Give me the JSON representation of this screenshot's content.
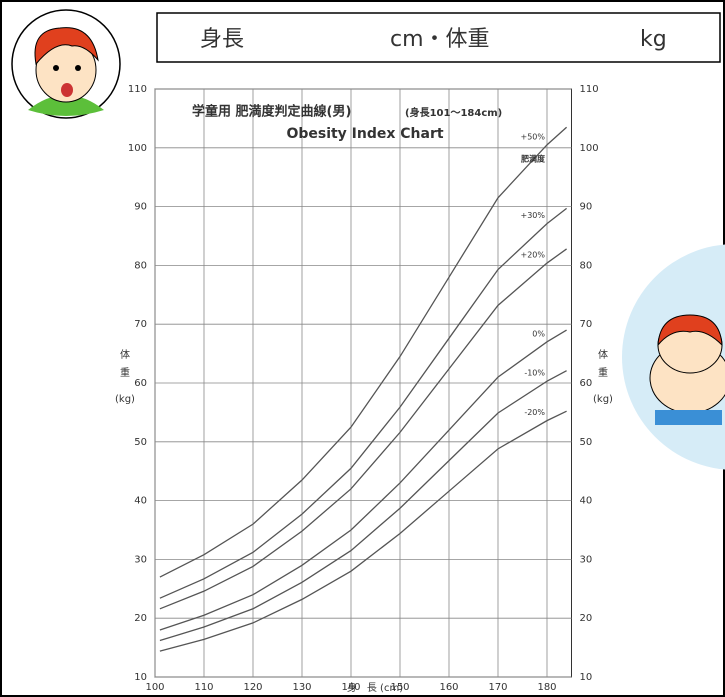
{
  "header": {
    "height_label": "身長",
    "middle_label": "cm・体重",
    "weight_unit": "kg"
  },
  "chart_data": {
    "type": "line",
    "title": "学童用  肥満度判定曲線(男)",
    "title_note": "(身長101〜184cm)",
    "subtitle": "Obesity Index Chart",
    "y_label_chars": [
      "体",
      "重"
    ],
    "y_unit": "(kg)",
    "x_label": "身　長  (cm)",
    "annotation": "肥満度",
    "x": [
      101,
      110,
      120,
      130,
      140,
      150,
      160,
      170,
      180,
      184
    ],
    "series": [
      {
        "name": "+50%",
        "color": "#555555",
        "values": [
          27,
          30.8,
          36,
          43.5,
          52.5,
          64.5,
          78,
          91.5,
          100.5,
          103.5
        ]
      },
      {
        "name": "+30%",
        "color": "#555555",
        "values": [
          23.4,
          26.7,
          31.2,
          37.7,
          45.5,
          55.9,
          67.6,
          79.3,
          87.1,
          89.7
        ]
      },
      {
        "name": "+20%",
        "color": "#555555",
        "values": [
          21.6,
          24.6,
          28.8,
          34.8,
          42,
          51.6,
          62.4,
          73.2,
          80.4,
          82.8
        ]
      },
      {
        "name": "0%",
        "color": "#555555",
        "values": [
          18,
          20.5,
          24,
          29,
          35,
          43,
          52,
          61,
          67,
          69
        ]
      },
      {
        "name": "-10%",
        "color": "#555555",
        "values": [
          16.2,
          18.5,
          21.6,
          26.1,
          31.5,
          38.7,
          46.8,
          54.9,
          60.3,
          62.1
        ]
      },
      {
        "name": "-20%",
        "color": "#555555",
        "values": [
          14.4,
          16.4,
          19.2,
          23.2,
          28,
          34.4,
          41.6,
          48.8,
          53.6,
          55.2
        ]
      }
    ],
    "xlim": [
      100,
      185
    ],
    "xticks": [
      100,
      110,
      120,
      130,
      140,
      150,
      160,
      170,
      180
    ],
    "ylim": [
      10,
      110
    ],
    "yticks": [
      10,
      20,
      30,
      40,
      50,
      60,
      70,
      80,
      90,
      100,
      110
    ],
    "grid": true
  }
}
